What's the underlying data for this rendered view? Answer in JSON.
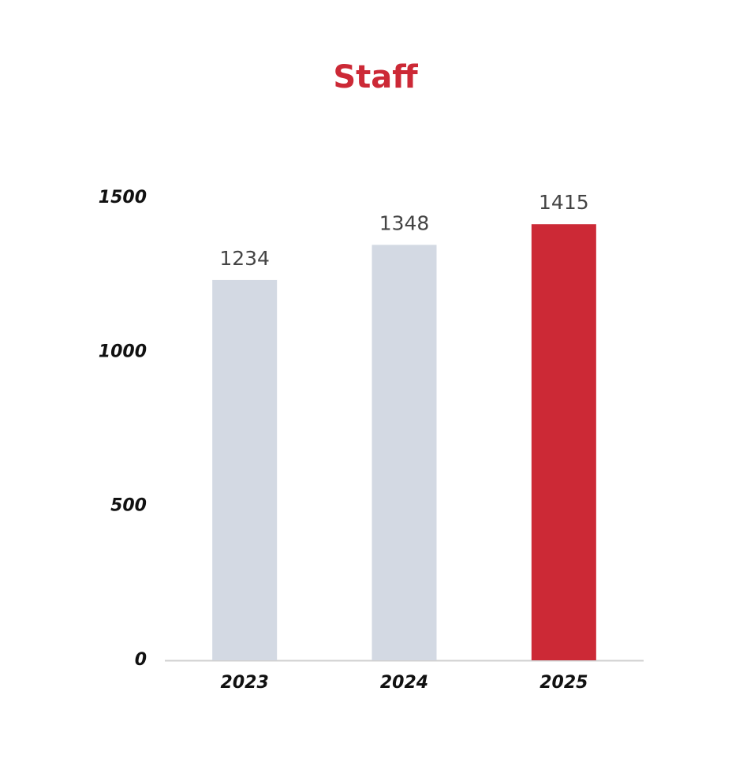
{
  "chart_data": {
    "type": "bar",
    "title": "Staff",
    "categories": [
      "2023",
      "2024",
      "2025"
    ],
    "values": [
      1234,
      1348,
      1415
    ],
    "colors": [
      "#d3d9e3",
      "#d3d9e3",
      "#cc2936"
    ],
    "ylim": [
      0,
      1500
    ],
    "yticks": [
      0,
      500,
      1000,
      1500
    ],
    "grid": false
  }
}
